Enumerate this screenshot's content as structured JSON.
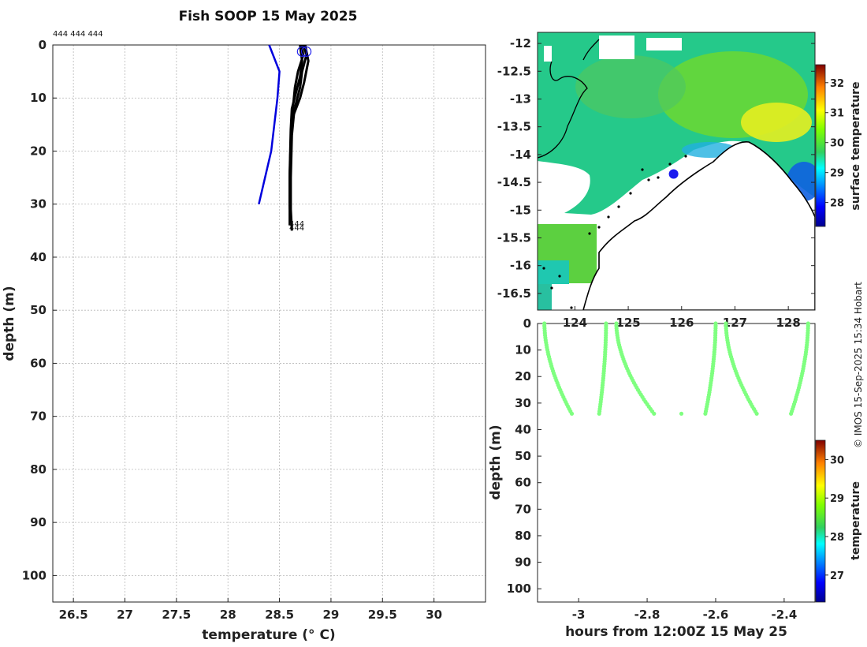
{
  "title": "Fish SOOP 15 May 2025",
  "credit": "© IMOS 15-Sep-2025 15:34 Hobart",
  "chart_data": [
    {
      "type": "line",
      "name": "profile",
      "title": "Fish SOOP 15 May 2025",
      "xlabel": "temperature (° C)",
      "ylabel": "depth (m)",
      "xlim": [
        26.3,
        30.5
      ],
      "ylim": [
        105,
        0
      ],
      "xticks": [
        26.5,
        27,
        27.5,
        28,
        28.5,
        29,
        29.5,
        30
      ],
      "yticks": [
        0,
        10,
        20,
        30,
        40,
        50,
        60,
        70,
        80,
        90,
        100
      ],
      "id_labels_top": "444 444 444",
      "id_labels_bottom": [
        "444",
        "444"
      ],
      "grid": true,
      "series": [
        {
          "name": "climatology",
          "color": "#0000dd",
          "x": [
            28.4,
            28.5,
            28.48,
            28.42,
            28.3
          ],
          "y": [
            0,
            5,
            10,
            20,
            30
          ]
        },
        {
          "name": "profile 1",
          "color": "#000000",
          "x": [
            28.72,
            28.73,
            28.68,
            28.65,
            28.63,
            28.61,
            28.6,
            28.6,
            28.61
          ],
          "y": [
            0,
            2,
            5,
            8,
            12,
            18,
            25,
            30,
            34
          ]
        },
        {
          "name": "profile 2",
          "color": "#000000",
          "x": [
            28.74,
            28.76,
            28.72,
            28.7,
            28.66,
            28.62,
            28.61,
            28.6,
            28.61
          ],
          "y": [
            0,
            2,
            5,
            8,
            11,
            15,
            22,
            30,
            34
          ]
        },
        {
          "name": "profile 3",
          "color": "#000000",
          "x": [
            28.7,
            28.72,
            28.7,
            28.66,
            28.62,
            28.61,
            28.6,
            28.6,
            28.6
          ],
          "y": [
            0,
            3,
            6,
            9,
            12,
            16,
            24,
            30,
            34
          ]
        },
        {
          "name": "profile 4",
          "color": "#000000",
          "x": [
            28.75,
            28.78,
            28.74,
            28.7,
            28.64,
            28.62,
            28.61,
            28.61,
            28.62
          ],
          "y": [
            0,
            3,
            7,
            10,
            13,
            17,
            25,
            31,
            35
          ]
        }
      ],
      "surface_markers": [
        {
          "x": 28.72,
          "y": 0.5
        },
        {
          "x": 28.76,
          "y": 0.5
        }
      ]
    },
    {
      "type": "heatmap",
      "name": "map",
      "colorbar_label": "surface temperature",
      "colorbar_range": [
        27.2,
        32.6
      ],
      "colorbar_ticks": [
        28,
        29,
        30,
        31,
        32
      ],
      "xlim": [
        123.3,
        128.5
      ],
      "ylim": [
        -16.8,
        -11.8
      ],
      "xticks": [
        124,
        125,
        126,
        127,
        128
      ],
      "yticks": [
        -12,
        -12.5,
        -13,
        -13.5,
        -14,
        -14.5,
        -15,
        -15.5,
        -16,
        -16.5
      ],
      "ship_position": {
        "lon": 125.85,
        "lat": -14.35
      }
    },
    {
      "type": "scatter",
      "name": "section",
      "xlabel": "hours from 12:00Z 15 May 25",
      "ylabel": "depth (m)",
      "colorbar_label": "temperature",
      "colorbar_range": [
        26.3,
        30.5
      ],
      "colorbar_ticks": [
        27,
        28,
        29,
        30
      ],
      "xlim": [
        -3.12,
        -2.31
      ],
      "ylim": [
        105,
        0
      ],
      "xticks": [
        -3,
        -2.8,
        -2.6,
        -2.4
      ],
      "yticks": [
        0,
        10,
        20,
        30,
        40,
        50,
        60,
        70,
        80,
        90,
        100
      ],
      "casts": [
        {
          "x_top": -3.1,
          "x_bottom": -3.02,
          "down": true
        },
        {
          "x_top": -2.92,
          "x_bottom": -2.94,
          "down": false
        },
        {
          "x_top": -2.89,
          "x_bottom": -2.78,
          "down": true
        },
        {
          "x_top": -2.7,
          "x_bottom": -2.7,
          "single": true
        },
        {
          "x_top": -2.6,
          "x_bottom": -2.63,
          "down": false
        },
        {
          "x_top": -2.57,
          "x_bottom": -2.48,
          "down": true
        },
        {
          "x_top": -2.33,
          "x_bottom": -2.38,
          "down": false
        }
      ],
      "cast_max_depth": 34,
      "point_temperature": 28.4
    }
  ]
}
